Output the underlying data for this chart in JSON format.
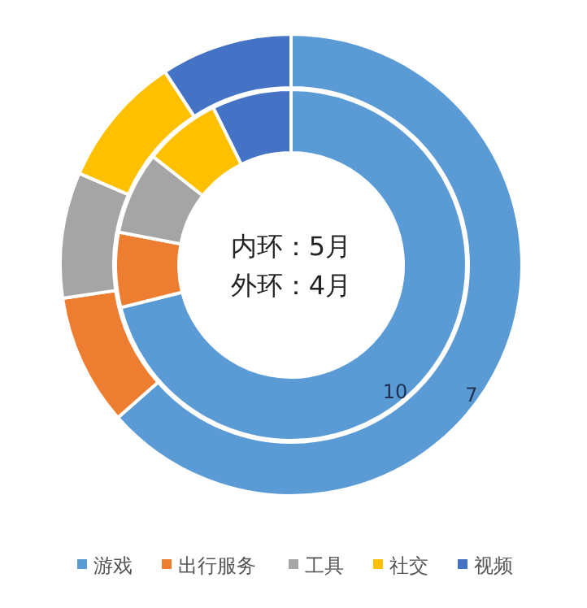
{
  "chart_data": {
    "type": "donut",
    "categories": [
      "游戏",
      "出行服务",
      "工具",
      "社交",
      "视频"
    ],
    "colors": [
      "#5b9bd5",
      "#ed7d31",
      "#a5a5a5",
      "#ffc000",
      "#4472c4"
    ],
    "series": [
      {
        "values": [
          71.1,
          6.9,
          7.6,
          7.1,
          7.3
        ]
      },
      {
        "values": [
          63.5,
          9.2,
          8.8,
          9.3,
          9.2
        ]
      }
    ],
    "annotations": [
      "内环：5月",
      "外环：4月",
      "10",
      "7"
    ],
    "legend": "bottom"
  }
}
